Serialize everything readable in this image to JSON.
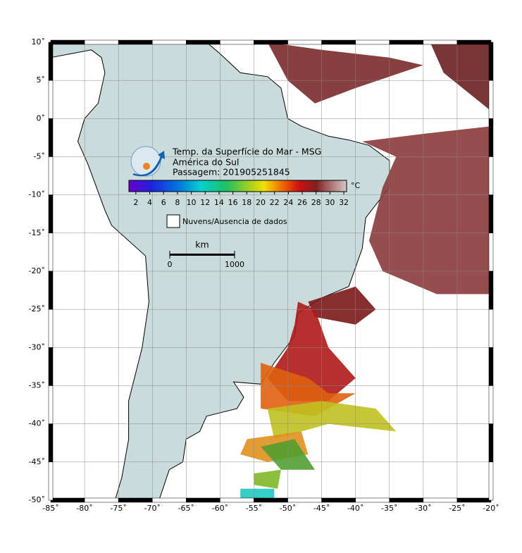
{
  "map": {
    "title": [
      "Temp. da Superfície do Mar - MSG",
      "América do Sul",
      "Passagem: 201905251845"
    ],
    "lon_lim": [
      -85,
      -20
    ],
    "lat_lim": [
      10,
      -50
    ],
    "lon_ticks": [
      {
        "value": -85,
        "label": "-85˚"
      },
      {
        "value": -80,
        "label": "-80˚"
      },
      {
        "value": -75,
        "label": "-75˚"
      },
      {
        "value": -70,
        "label": "-70˚"
      },
      {
        "value": -65,
        "label": "-65˚"
      },
      {
        "value": -60,
        "label": "-60˚"
      },
      {
        "value": -55,
        "label": "-55˚"
      },
      {
        "value": -50,
        "label": "-50˚"
      },
      {
        "value": -45,
        "label": "-45˚"
      },
      {
        "value": -40,
        "label": "-40˚"
      },
      {
        "value": -35,
        "label": "-35˚"
      },
      {
        "value": -30,
        "label": "-30˚"
      },
      {
        "value": -25,
        "label": "-25˚"
      },
      {
        "value": -20,
        "label": "-20˚"
      }
    ],
    "lat_ticks": [
      {
        "value": 10,
        "label": "10˚"
      },
      {
        "value": 5,
        "label": "5˚"
      },
      {
        "value": 0,
        "label": "0˚"
      },
      {
        "value": -5,
        "label": "-5˚"
      },
      {
        "value": -10,
        "label": "-10˚"
      },
      {
        "value": -15,
        "label": "-15˚"
      },
      {
        "value": -20,
        "label": "-20˚"
      },
      {
        "value": -25,
        "label": "-25˚"
      },
      {
        "value": -30,
        "label": "-30˚"
      },
      {
        "value": -35,
        "label": "-35˚"
      },
      {
        "value": -40,
        "label": "-40˚"
      },
      {
        "value": -45,
        "label": "-45˚"
      },
      {
        "value": -50,
        "label": "-50˚"
      }
    ],
    "colorbar": {
      "unit": "°C",
      "lim": [
        1,
        32.4
      ],
      "ticks": [
        2,
        4,
        6,
        8,
        10,
        12,
        14,
        16,
        18,
        20,
        22,
        24,
        26,
        28,
        30,
        32
      ]
    },
    "legend": "Nuvens/Ausencia de dados",
    "scale": {
      "unit": "km",
      "ticks": [
        0,
        1000
      ]
    }
  }
}
